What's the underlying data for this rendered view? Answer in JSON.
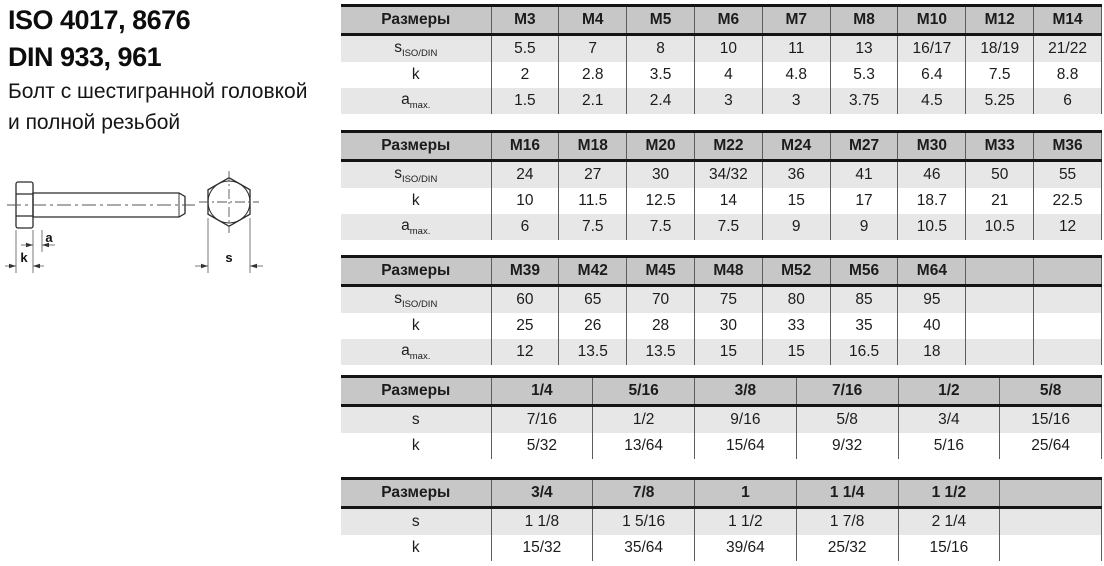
{
  "title": {
    "line1": "ISO 4017, 8676",
    "line2": "DIN 933, 961",
    "line3": "Болт с шестигранной головкой",
    "line4": "и полной резьбой"
  },
  "drawing": {
    "dim_a": "a",
    "dim_k": "k",
    "dim_s": "s"
  },
  "colors": {
    "table_header_bg": "#c7c7c7",
    "table_shaded_row_bg": "#e7e7e7",
    "table_border": "#141414"
  },
  "tables": [
    {
      "corner_label": "Размеры",
      "columns": [
        "M3",
        "M4",
        "M5",
        "M6",
        "M7",
        "M8",
        "M10",
        "M12",
        "M14"
      ],
      "rows": [
        {
          "label": "s",
          "sub": "ISO/DIN",
          "shaded": true,
          "values": [
            "5.5",
            "7",
            "8",
            "10",
            "11",
            "13",
            "16/17",
            "18/19",
            "21/22"
          ]
        },
        {
          "label": "k",
          "sub": "",
          "shaded": false,
          "values": [
            "2",
            "2.8",
            "3.5",
            "4",
            "4.8",
            "5.3",
            "6.4",
            "7.5",
            "8.8"
          ]
        },
        {
          "label": "a",
          "sub": "max.",
          "shaded": true,
          "values": [
            "1.5",
            "2.1",
            "2.4",
            "3",
            "3",
            "3.75",
            "4.5",
            "5.25",
            "6"
          ]
        }
      ]
    },
    {
      "corner_label": "Размеры",
      "columns": [
        "M16",
        "M18",
        "M20",
        "M22",
        "M24",
        "M27",
        "M30",
        "M33",
        "M36"
      ],
      "rows": [
        {
          "label": "s",
          "sub": "ISO/DIN",
          "shaded": true,
          "values": [
            "24",
            "27",
            "30",
            "34/32",
            "36",
            "41",
            "46",
            "50",
            "55"
          ]
        },
        {
          "label": "k",
          "sub": "",
          "shaded": false,
          "values": [
            "10",
            "11.5",
            "12.5",
            "14",
            "15",
            "17",
            "18.7",
            "21",
            "22.5"
          ]
        },
        {
          "label": "a",
          "sub": "max.",
          "shaded": true,
          "values": [
            "6",
            "7.5",
            "7.5",
            "7.5",
            "9",
            "9",
            "10.5",
            "10.5",
            "12"
          ]
        }
      ]
    },
    {
      "corner_label": "Размеры",
      "columns": [
        "M39",
        "M42",
        "M45",
        "M48",
        "M52",
        "M56",
        "M64",
        "",
        ""
      ],
      "rows": [
        {
          "label": "s",
          "sub": "ISO/DIN",
          "shaded": true,
          "values": [
            "60",
            "65",
            "70",
            "75",
            "80",
            "85",
            "95",
            "",
            ""
          ]
        },
        {
          "label": "k",
          "sub": "",
          "shaded": false,
          "values": [
            "25",
            "26",
            "28",
            "30",
            "33",
            "35",
            "40",
            "",
            ""
          ]
        },
        {
          "label": "a",
          "sub": "max.",
          "shaded": true,
          "values": [
            "12",
            "13.5",
            "13.5",
            "15",
            "15",
            "16.5",
            "18",
            "",
            ""
          ]
        }
      ]
    },
    {
      "corner_label": "Размеры",
      "columns": [
        "1/4",
        "5/16",
        "3/8",
        "7/16",
        "1/2",
        "5/8"
      ],
      "rows": [
        {
          "label": "s",
          "sub": "",
          "shaded": true,
          "values": [
            "7/16",
            "1/2",
            "9/16",
            "5/8",
            "3/4",
            "15/16"
          ]
        },
        {
          "label": "k",
          "sub": "",
          "shaded": false,
          "values": [
            "5/32",
            "13/64",
            "15/64",
            "9/32",
            "5/16",
            "25/64"
          ]
        }
      ]
    },
    {
      "corner_label": "Размеры",
      "columns": [
        "3/4",
        "7/8",
        "1",
        "1 1/4",
        "1 1/2",
        ""
      ],
      "rows": [
        {
          "label": "s",
          "sub": "",
          "shaded": true,
          "values": [
            "1 1/8",
            "1 5/16",
            "1 1/2",
            "1 7/8",
            "2 1/4",
            ""
          ]
        },
        {
          "label": "k",
          "sub": "",
          "shaded": false,
          "values": [
            "15/32",
            "35/64",
            "39/64",
            "25/32",
            "15/16",
            ""
          ]
        }
      ]
    }
  ]
}
